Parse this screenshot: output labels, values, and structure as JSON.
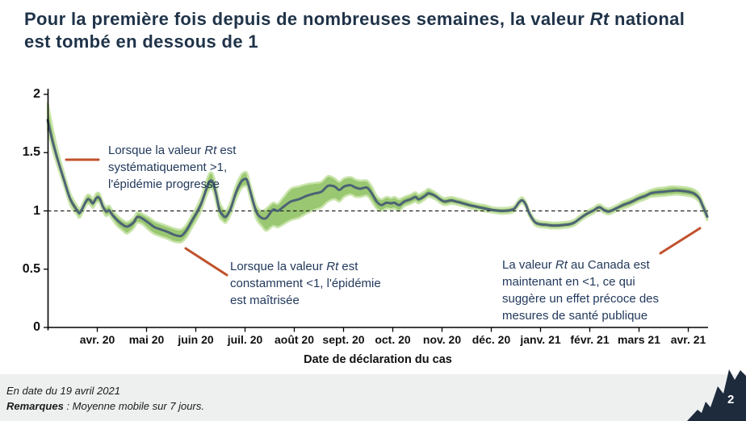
{
  "title": {
    "line1_pre": "Pour la première fois depuis de nombreuses semaines, la valeur ",
    "line1_italic": "Rt",
    "line1_post": " national",
    "line2": "est tombé en dessous de 1"
  },
  "colors": {
    "title_text": "#1f3349",
    "annotation_text": "#22395c",
    "annotation_leader_line": "#c0522d",
    "band_fill": "#9ac872",
    "band_fringe": "#c9e4ab",
    "line": "#4d6375",
    "axis": "#000000",
    "footer_background": "#eef0f0",
    "maple_leaf": "#1e2b3c",
    "page_number_text": "#ffffff"
  },
  "chart_data": {
    "type": "line",
    "description": "Rt national du Canada avec intervalle de confiance (bande verte), moyenne mobile sur 7 jours",
    "xlabel": "Date de déclaration du cas",
    "ylabel": "",
    "ylim": [
      0,
      2
    ],
    "y_tick_labels": [
      "0",
      "0.5",
      "1",
      "1.5",
      "2"
    ],
    "y_tick_values": [
      0,
      0.5,
      1,
      1.5,
      2
    ],
    "x_tick_labels": [
      "avr. 20",
      "mai 20",
      "juin 20",
      "juil. 20",
      "août 20",
      "sept. 20",
      "oct. 20",
      "nov. 20",
      "déc. 20",
      "janv. 21",
      "févr. 21",
      "mars 21",
      "avr. 21"
    ],
    "reference_line_y": 1,
    "grid": false,
    "legend": false,
    "series": [
      {
        "name": "Rt national (moyenne mobile sur 7 jours)",
        "points_columns": [
          "date",
          "rt",
          "low",
          "high"
        ],
        "points": [
          [
            "2020-03-13",
            1.78,
            1.7,
            1.93
          ],
          [
            "2020-03-16",
            1.6,
            1.53,
            1.72
          ],
          [
            "2020-03-19",
            1.45,
            1.39,
            1.53
          ],
          [
            "2020-03-23",
            1.27,
            1.22,
            1.33
          ],
          [
            "2020-03-27",
            1.1,
            1.05,
            1.15
          ],
          [
            "2020-03-31",
            1.01,
            0.97,
            1.05
          ],
          [
            "2020-04-02",
            0.985,
            0.945,
            1.025
          ],
          [
            "2020-04-06",
            1.09,
            1.05,
            1.13
          ],
          [
            "2020-04-08",
            1.095,
            1.055,
            1.135
          ],
          [
            "2020-04-10",
            1.065,
            1.025,
            1.105
          ],
          [
            "2020-04-12",
            1.11,
            1.07,
            1.15
          ],
          [
            "2020-04-14",
            1.11,
            1.07,
            1.15
          ],
          [
            "2020-04-16",
            1.04,
            1.0,
            1.08
          ],
          [
            "2020-04-18",
            0.995,
            0.955,
            1.035
          ],
          [
            "2020-04-20",
            1.005,
            0.965,
            1.045
          ],
          [
            "2020-04-22",
            0.965,
            0.925,
            1.005
          ],
          [
            "2020-04-25",
            0.92,
            0.87,
            0.96
          ],
          [
            "2020-04-28",
            0.885,
            0.835,
            0.925
          ],
          [
            "2020-05-01",
            0.865,
            0.805,
            0.905
          ],
          [
            "2020-05-05",
            0.9,
            0.85,
            0.94
          ],
          [
            "2020-05-07",
            0.945,
            0.895,
            0.985
          ],
          [
            "2020-05-09",
            0.945,
            0.895,
            0.985
          ],
          [
            "2020-05-11",
            0.93,
            0.88,
            0.97
          ],
          [
            "2020-05-15",
            0.89,
            0.83,
            0.94
          ],
          [
            "2020-05-18",
            0.86,
            0.8,
            0.91
          ],
          [
            "2020-05-22",
            0.84,
            0.78,
            0.89
          ],
          [
            "2020-05-26",
            0.82,
            0.76,
            0.87
          ],
          [
            "2020-05-30",
            0.795,
            0.735,
            0.85
          ],
          [
            "2020-06-02",
            0.785,
            0.73,
            0.84
          ],
          [
            "2020-06-04",
            0.79,
            0.735,
            0.845
          ],
          [
            "2020-06-07",
            0.84,
            0.78,
            0.89
          ],
          [
            "2020-06-10",
            0.915,
            0.855,
            0.965
          ],
          [
            "2020-06-13",
            0.985,
            0.925,
            1.035
          ],
          [
            "2020-06-16",
            1.07,
            1.01,
            1.13
          ],
          [
            "2020-06-19",
            1.19,
            1.13,
            1.26
          ],
          [
            "2020-06-21",
            1.255,
            1.185,
            1.325
          ],
          [
            "2020-06-23",
            1.245,
            1.175,
            1.315
          ],
          [
            "2020-06-25",
            1.14,
            1.07,
            1.21
          ],
          [
            "2020-06-27",
            1.01,
            0.95,
            1.08
          ],
          [
            "2020-06-29",
            0.965,
            0.915,
            1.025
          ],
          [
            "2020-07-01",
            0.95,
            0.9,
            1.0
          ],
          [
            "2020-07-04",
            1.02,
            0.97,
            1.08
          ],
          [
            "2020-07-07",
            1.15,
            1.09,
            1.21
          ],
          [
            "2020-07-10",
            1.24,
            1.18,
            1.3
          ],
          [
            "2020-07-12",
            1.27,
            1.21,
            1.33
          ],
          [
            "2020-07-14",
            1.265,
            1.205,
            1.325
          ],
          [
            "2020-07-16",
            1.17,
            1.11,
            1.23
          ],
          [
            "2020-07-18",
            1.07,
            1.01,
            1.13
          ],
          [
            "2020-07-20",
            0.985,
            0.925,
            1.045
          ],
          [
            "2020-07-23",
            0.94,
            0.87,
            1.0
          ],
          [
            "2020-07-26",
            0.94,
            0.83,
            1.02
          ],
          [
            "2020-07-30",
            1.01,
            0.87,
            1.07
          ],
          [
            "2020-08-02",
            1.0,
            0.86,
            1.06
          ],
          [
            "2020-08-05",
            1.03,
            0.88,
            1.11
          ],
          [
            "2020-08-10",
            1.08,
            0.92,
            1.19
          ],
          [
            "2020-08-15",
            1.1,
            0.94,
            1.21
          ],
          [
            "2020-08-20",
            1.13,
            0.98,
            1.23
          ],
          [
            "2020-08-25",
            1.15,
            1.01,
            1.24
          ],
          [
            "2020-08-29",
            1.165,
            1.03,
            1.25
          ],
          [
            "2020-09-02",
            1.215,
            1.08,
            1.3
          ],
          [
            "2020-09-06",
            1.21,
            1.1,
            1.28
          ],
          [
            "2020-09-09",
            1.18,
            1.08,
            1.25
          ],
          [
            "2020-09-12",
            1.21,
            1.12,
            1.28
          ],
          [
            "2020-09-16",
            1.22,
            1.14,
            1.29
          ],
          [
            "2020-09-19",
            1.2,
            1.12,
            1.27
          ],
          [
            "2020-09-22",
            1.19,
            1.12,
            1.26
          ],
          [
            "2020-09-26",
            1.2,
            1.13,
            1.26
          ],
          [
            "2020-09-29",
            1.15,
            1.08,
            1.21
          ],
          [
            "2020-10-02",
            1.08,
            1.02,
            1.13
          ],
          [
            "2020-10-05",
            1.05,
            1.0,
            1.1
          ],
          [
            "2020-10-08",
            1.07,
            1.02,
            1.12
          ],
          [
            "2020-10-11",
            1.065,
            1.015,
            1.11
          ],
          [
            "2020-10-13",
            1.07,
            1.02,
            1.12
          ],
          [
            "2020-10-16",
            1.05,
            1.0,
            1.1
          ],
          [
            "2020-10-19",
            1.08,
            1.04,
            1.12
          ],
          [
            "2020-10-23",
            1.1,
            1.06,
            1.14
          ],
          [
            "2020-10-26",
            1.12,
            1.08,
            1.16
          ],
          [
            "2020-10-28",
            1.1,
            1.065,
            1.14
          ],
          [
            "2020-11-01",
            1.13,
            1.1,
            1.17
          ],
          [
            "2020-11-03",
            1.15,
            1.12,
            1.19
          ],
          [
            "2020-11-07",
            1.13,
            1.1,
            1.16
          ],
          [
            "2020-11-10",
            1.1,
            1.07,
            1.13
          ],
          [
            "2020-11-13",
            1.08,
            1.05,
            1.11
          ],
          [
            "2020-11-17",
            1.09,
            1.06,
            1.12
          ],
          [
            "2020-11-20",
            1.08,
            1.055,
            1.11
          ],
          [
            "2020-11-23",
            1.07,
            1.045,
            1.1
          ],
          [
            "2020-11-28",
            1.05,
            1.025,
            1.08
          ],
          [
            "2020-12-03",
            1.035,
            1.01,
            1.06
          ],
          [
            "2020-12-08",
            1.02,
            0.995,
            1.05
          ],
          [
            "2020-12-13",
            1.007,
            0.985,
            1.03
          ],
          [
            "2020-12-18",
            1.0,
            0.975,
            1.025
          ],
          [
            "2020-12-23",
            1.005,
            0.98,
            1.03
          ],
          [
            "2020-12-26",
            1.02,
            0.995,
            1.045
          ],
          [
            "2020-12-29",
            1.075,
            1.05,
            1.1
          ],
          [
            "2020-12-31",
            1.09,
            1.065,
            1.115
          ],
          [
            "2021-01-02",
            1.055,
            1.03,
            1.08
          ],
          [
            "2021-01-04",
            0.985,
            0.96,
            1.01
          ],
          [
            "2021-01-06",
            0.935,
            0.91,
            0.96
          ],
          [
            "2021-01-08",
            0.9,
            0.875,
            0.925
          ],
          [
            "2021-01-11",
            0.885,
            0.86,
            0.91
          ],
          [
            "2021-01-15",
            0.88,
            0.855,
            0.905
          ],
          [
            "2021-01-18",
            0.875,
            0.85,
            0.9
          ],
          [
            "2021-01-22",
            0.875,
            0.85,
            0.9
          ],
          [
            "2021-01-26",
            0.88,
            0.855,
            0.905
          ],
          [
            "2021-01-29",
            0.885,
            0.86,
            0.91
          ],
          [
            "2021-02-01",
            0.9,
            0.875,
            0.925
          ],
          [
            "2021-02-04",
            0.93,
            0.905,
            0.955
          ],
          [
            "2021-02-07",
            0.96,
            0.935,
            0.985
          ],
          [
            "2021-02-10",
            0.985,
            0.96,
            1.01
          ],
          [
            "2021-02-13",
            1.005,
            0.98,
            1.03
          ],
          [
            "2021-02-15",
            1.025,
            1.0,
            1.05
          ],
          [
            "2021-02-17",
            1.03,
            1.005,
            1.055
          ],
          [
            "2021-02-19",
            1.01,
            0.985,
            1.035
          ],
          [
            "2021-02-22",
            0.995,
            0.97,
            1.02
          ],
          [
            "2021-02-25",
            1.01,
            0.985,
            1.035
          ],
          [
            "2021-02-28",
            1.03,
            1.005,
            1.055
          ],
          [
            "2021-03-03",
            1.05,
            1.02,
            1.08
          ],
          [
            "2021-03-07",
            1.07,
            1.04,
            1.1
          ],
          [
            "2021-03-10",
            1.09,
            1.06,
            1.12
          ],
          [
            "2021-03-13",
            1.11,
            1.08,
            1.14
          ],
          [
            "2021-03-17",
            1.13,
            1.1,
            1.16
          ],
          [
            "2021-03-20",
            1.15,
            1.12,
            1.18
          ],
          [
            "2021-03-24",
            1.16,
            1.125,
            1.195
          ],
          [
            "2021-03-28",
            1.165,
            1.13,
            1.2
          ],
          [
            "2021-04-01",
            1.17,
            1.135,
            1.21
          ],
          [
            "2021-04-05",
            1.175,
            1.14,
            1.21
          ],
          [
            "2021-04-09",
            1.17,
            1.135,
            1.205
          ],
          [
            "2021-04-13",
            1.162,
            1.127,
            1.197
          ],
          [
            "2021-04-16",
            1.148,
            1.113,
            1.183
          ],
          [
            "2021-04-19",
            1.11,
            1.075,
            1.145
          ],
          [
            "2021-04-21",
            1.05,
            1.015,
            1.085
          ],
          [
            "2021-04-23",
            0.985,
            0.95,
            1.02
          ],
          [
            "2021-04-24",
            0.95,
            0.915,
            0.985
          ]
        ]
      }
    ]
  },
  "annotations": [
    {
      "l1_pre": "Lorsque la valeur ",
      "l1_it": "Rt",
      "l1_post": " est",
      "l2": "systématiquement >1,",
      "l3": "l'épidémie progresse"
    },
    {
      "l1_pre": "Lorsque la valeur ",
      "l1_it": "Rt",
      "l1_post": " est",
      "l2": "constamment <1, l'épidémie",
      "l3": "est maîtrisée"
    },
    {
      "l1_pre": "La valeur ",
      "l1_it": "Rt",
      "l1_post": " au Canada est",
      "l2": "maintenant en <1, ce qui",
      "l3": "suggère un effet précoce des",
      "l4": "mesures de santé publique"
    }
  ],
  "footer": {
    "line1": "En date du 19 avril 2021",
    "line2_bold": "Remarques",
    "line2_rest": " : Moyenne mobile sur 7 jours.",
    "page_number": "2"
  }
}
